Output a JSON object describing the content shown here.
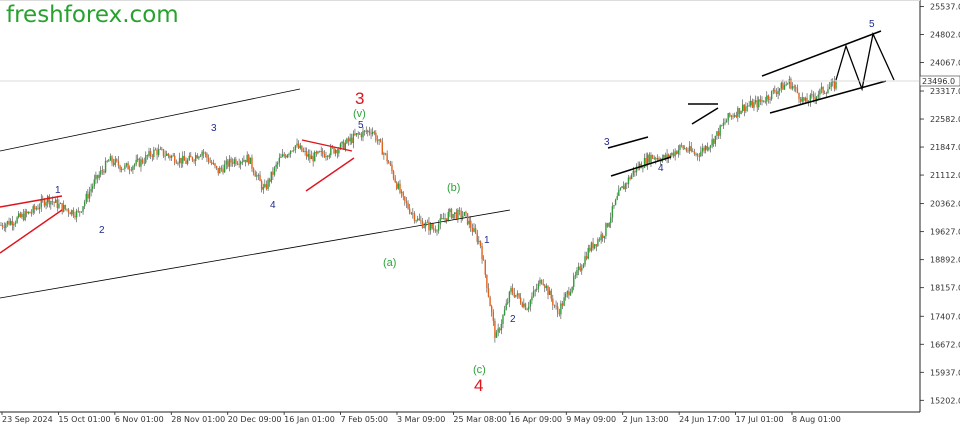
{
  "logo": {
    "text": "freshforex.com",
    "color": "#28a12e"
  },
  "colors": {
    "candle_up": "#2e9b36",
    "candle_down": "#e1601a",
    "price_line": "#202020",
    "wave_blue": "#1f2a8f",
    "wave_green": "#2ea33a",
    "wave_red": "#e0141e",
    "red_triangle": "#e0141e",
    "channel": "#000000"
  },
  "chart_data": {
    "type": "line",
    "instrument_note": "",
    "title": "",
    "xlabel": "",
    "ylabel": "",
    "x_tick_labels": [
      "23 Sep 2024",
      "15 Oct 01:00",
      "6 Nov 01:00",
      "28 Nov 01:00",
      "20 Dec 09:00",
      "16 Jan 01:00",
      "7 Feb 05:00",
      "3 Mar 09:00",
      "25 Mar 08:00",
      "16 Apr 09:00",
      "9 May 09:00",
      "2 Jun 13:00",
      "24 Jun 17:00",
      "17 Jul 01:00",
      "8 Aug 01:00"
    ],
    "y_tick_labels": [
      "25537.0",
      "24802.0",
      "24067.0",
      "23317.0",
      "22582.0",
      "21847.0",
      "21112.0",
      "20362.0",
      "19627.0",
      "18892.0",
      "18157.0",
      "17407.0",
      "16672.0",
      "15937.0",
      "15202.0"
    ],
    "ylim": [
      15000,
      25600
    ],
    "current_price": {
      "label": "23496.0",
      "value": 23496
    },
    "grid": false,
    "series": [
      {
        "x": [
          "23 Sep 2024",
          "30 Sep 2024",
          "7 Oct 2024",
          "15 Oct 2024",
          "22 Oct 2024",
          "29 Oct 2024",
          "6 Nov 2024",
          "12 Nov 2024",
          "18 Nov 2024",
          "22 Nov 2024",
          "28 Nov 2024",
          "4 Dec 2024",
          "10 Dec 2024",
          "16 Dec 2024",
          "20 Dec 2024",
          "27 Dec 2024",
          "3 Jan 2025",
          "9 Jan 2025",
          "16 Jan 2025",
          "22 Jan 2025",
          "28 Jan 2025",
          "3 Feb 2025",
          "7 Feb 2025",
          "13 Feb 2025",
          "19 Feb 2025",
          "25 Feb 2025",
          "3 Mar 2025",
          "8 Mar 2025",
          "13 Mar 2025",
          "19 Mar 2025",
          "25 Mar 2025",
          "1 Apr 2025",
          "4 Apr 2025",
          "7 Apr 2025",
          "9 Apr 2025",
          "12 Apr 2025",
          "16 Apr 2025",
          "20 Apr 2025",
          "25 Apr 2025",
          "1 May 2025",
          "9 May 2025",
          "15 May 2025",
          "22 May 2025",
          "2 Jun 2025",
          "9 Jun 2025",
          "16 Jun 2025",
          "24 Jun 2025",
          "1 Jul 2025",
          "9 Jul 2025",
          "17 Jul 2025",
          "23 Jul 2025",
          "29 Jul 2025",
          "4 Aug 2025",
          "8 Aug 2025",
          "14 Aug 2025"
        ],
        "values": [
          19800,
          19950,
          20150,
          20500,
          20250,
          20100,
          20900,
          21500,
          21300,
          21450,
          21750,
          21600,
          21450,
          21750,
          21200,
          21500,
          21550,
          20700,
          21500,
          21900,
          21550,
          21700,
          21850,
          22150,
          22300,
          21500,
          20450,
          19900,
          19700,
          20100,
          20050,
          19300,
          16800,
          18100,
          17650,
          18400,
          17500,
          18300,
          19150,
          19600,
          20650,
          21250,
          21600,
          21550,
          21850,
          21650,
          22000,
          22600,
          22900,
          23000,
          23300,
          23550,
          23000,
          23300,
          23496
        ]
      }
    ],
    "wave_labels": [
      {
        "text": "1",
        "color": "blue"
      },
      {
        "text": "2",
        "color": "blue"
      },
      {
        "text": "3",
        "color": "blue"
      },
      {
        "text": "4",
        "color": "blue"
      },
      {
        "text": "(v)",
        "color": "green"
      },
      {
        "text": "5",
        "color": "blue"
      },
      {
        "text": "3",
        "color": "red"
      },
      {
        "text": "(a)",
        "color": "green"
      },
      {
        "text": "(b)",
        "color": "green"
      },
      {
        "text": "(c)",
        "color": "green"
      },
      {
        "text": "4",
        "color": "red"
      },
      {
        "text": "1",
        "color": "blue"
      },
      {
        "text": "2",
        "color": "blue"
      },
      {
        "text": "3",
        "color": "blue"
      },
      {
        "text": "4",
        "color": "blue"
      },
      {
        "text": "5",
        "color": "blue"
      }
    ]
  }
}
